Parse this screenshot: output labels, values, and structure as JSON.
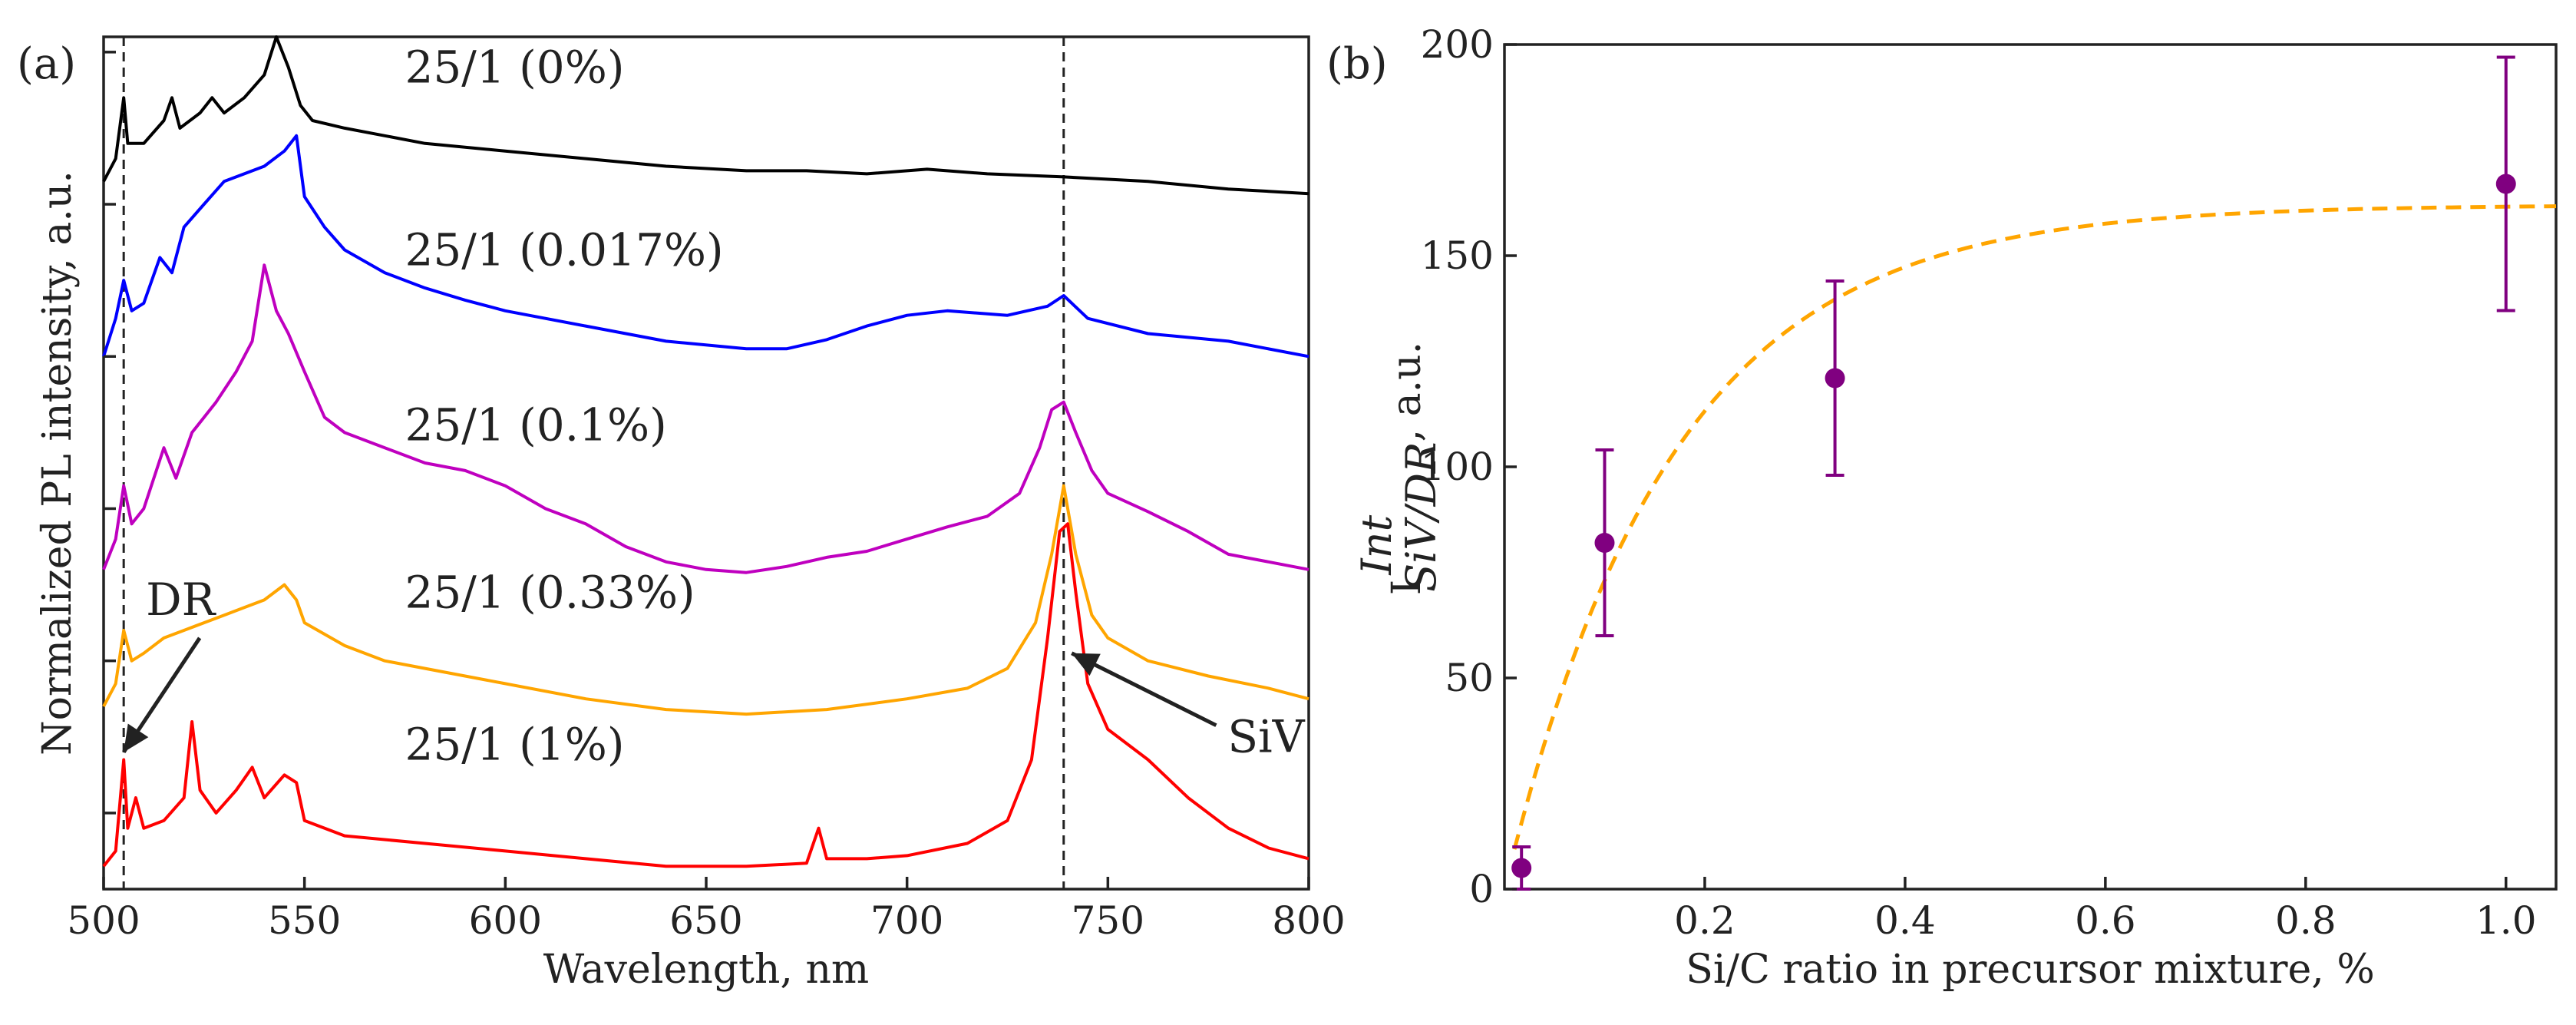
{
  "chart_data": [
    {
      "panel": "(a)",
      "type": "line",
      "xlabel": "Wavelength, nm",
      "ylabel": "Normalized PL intensity, a.u.",
      "xlim": [
        500,
        800
      ],
      "xticks": [
        500,
        550,
        600,
        650,
        700,
        750,
        800
      ],
      "ylim": [
        0,
        5.6
      ],
      "yticks": [
        0.5,
        1.5,
        2.5,
        3.5,
        4.5,
        5.5
      ],
      "dashed_lines_x": [
        505,
        739
      ],
      "series": [
        {
          "name": "25/1 (0%)",
          "color": "#000000",
          "offset": 4.6,
          "points": [
            [
              500,
              0.05
            ],
            [
              503,
              0.2
            ],
            [
              505,
              0.6
            ],
            [
              506,
              0.3
            ],
            [
              510,
              0.3
            ],
            [
              515,
              0.45
            ],
            [
              517,
              0.6
            ],
            [
              519,
              0.4
            ],
            [
              524,
              0.5
            ],
            [
              527,
              0.6
            ],
            [
              530,
              0.5
            ],
            [
              535,
              0.6
            ],
            [
              540,
              0.75
            ],
            [
              543,
              1.0
            ],
            [
              546,
              0.8
            ],
            [
              549,
              0.55
            ],
            [
              552,
              0.45
            ],
            [
              560,
              0.4
            ],
            [
              570,
              0.35
            ],
            [
              580,
              0.3
            ],
            [
              600,
              0.25
            ],
            [
              620,
              0.2
            ],
            [
              640,
              0.15
            ],
            [
              660,
              0.12
            ],
            [
              675,
              0.12
            ],
            [
              690,
              0.1
            ],
            [
              705,
              0.13
            ],
            [
              720,
              0.1
            ],
            [
              739,
              0.08
            ],
            [
              760,
              0.05
            ],
            [
              780,
              0.0
            ],
            [
              800,
              -0.03
            ]
          ]
        },
        {
          "name": "25/1 (0.017%)",
          "color": "#0000ff",
          "offset": 3.45,
          "points": [
            [
              500,
              0.05
            ],
            [
              503,
              0.3
            ],
            [
              505,
              0.55
            ],
            [
              507,
              0.35
            ],
            [
              510,
              0.4
            ],
            [
              514,
              0.7
            ],
            [
              517,
              0.6
            ],
            [
              520,
              0.9
            ],
            [
              525,
              1.05
            ],
            [
              530,
              1.2
            ],
            [
              535,
              1.25
            ],
            [
              540,
              1.3
            ],
            [
              545,
              1.4
            ],
            [
              548,
              1.5
            ],
            [
              550,
              1.1
            ],
            [
              555,
              0.9
            ],
            [
              560,
              0.75
            ],
            [
              570,
              0.6
            ],
            [
              580,
              0.5
            ],
            [
              590,
              0.42
            ],
            [
              600,
              0.35
            ],
            [
              620,
              0.25
            ],
            [
              640,
              0.15
            ],
            [
              660,
              0.1
            ],
            [
              670,
              0.1
            ],
            [
              680,
              0.16
            ],
            [
              690,
              0.25
            ],
            [
              700,
              0.32
            ],
            [
              710,
              0.35
            ],
            [
              725,
              0.32
            ],
            [
              735,
              0.38
            ],
            [
              739,
              0.45
            ],
            [
              745,
              0.3
            ],
            [
              760,
              0.2
            ],
            [
              780,
              0.15
            ],
            [
              800,
              0.05
            ]
          ]
        },
        {
          "name": "25/1 (0.1%)",
          "color": "#bf00bf",
          "offset": 2.1,
          "points": [
            [
              500,
              0.0
            ],
            [
              503,
              0.2
            ],
            [
              505,
              0.55
            ],
            [
              507,
              0.3
            ],
            [
              510,
              0.4
            ],
            [
              515,
              0.8
            ],
            [
              518,
              0.6
            ],
            [
              522,
              0.9
            ],
            [
              528,
              1.1
            ],
            [
              533,
              1.3
            ],
            [
              537,
              1.5
            ],
            [
              540,
              2.0
            ],
            [
              543,
              1.7
            ],
            [
              546,
              1.55
            ],
            [
              550,
              1.3
            ],
            [
              555,
              1.0
            ],
            [
              560,
              0.9
            ],
            [
              570,
              0.8
            ],
            [
              580,
              0.7
            ],
            [
              590,
              0.65
            ],
            [
              600,
              0.55
            ],
            [
              610,
              0.4
            ],
            [
              620,
              0.3
            ],
            [
              630,
              0.15
            ],
            [
              640,
              0.05
            ],
            [
              650,
              0.0
            ],
            [
              660,
              -0.02
            ],
            [
              670,
              0.02
            ],
            [
              680,
              0.08
            ],
            [
              690,
              0.12
            ],
            [
              700,
              0.2
            ],
            [
              710,
              0.28
            ],
            [
              720,
              0.35
            ],
            [
              728,
              0.5
            ],
            [
              733,
              0.8
            ],
            [
              736,
              1.05
            ],
            [
              739,
              1.1
            ],
            [
              742,
              0.9
            ],
            [
              746,
              0.65
            ],
            [
              750,
              0.5
            ],
            [
              760,
              0.38
            ],
            [
              770,
              0.25
            ],
            [
              780,
              0.1
            ],
            [
              790,
              0.05
            ],
            [
              800,
              0.0
            ]
          ]
        },
        {
          "name": "25/1 (0.33%)",
          "color": "#ffa500",
          "offset": 1.2,
          "points": [
            [
              500,
              0.0
            ],
            [
              503,
              0.15
            ],
            [
              505,
              0.5
            ],
            [
              507,
              0.3
            ],
            [
              510,
              0.35
            ],
            [
              515,
              0.45
            ],
            [
              520,
              0.5
            ],
            [
              525,
              0.55
            ],
            [
              530,
              0.6
            ],
            [
              535,
              0.65
            ],
            [
              540,
              0.7
            ],
            [
              545,
              0.8
            ],
            [
              548,
              0.7
            ],
            [
              550,
              0.55
            ],
            [
              560,
              0.4
            ],
            [
              570,
              0.3
            ],
            [
              580,
              0.25
            ],
            [
              600,
              0.15
            ],
            [
              620,
              0.05
            ],
            [
              640,
              -0.02
            ],
            [
              660,
              -0.05
            ],
            [
              680,
              -0.02
            ],
            [
              700,
              0.05
            ],
            [
              715,
              0.12
            ],
            [
              725,
              0.25
            ],
            [
              732,
              0.55
            ],
            [
              736,
              1.0
            ],
            [
              739,
              1.45
            ],
            [
              742,
              1.0
            ],
            [
              746,
              0.6
            ],
            [
              750,
              0.45
            ],
            [
              760,
              0.3
            ],
            [
              775,
              0.2
            ],
            [
              790,
              0.12
            ],
            [
              800,
              0.05
            ]
          ]
        },
        {
          "name": "25/1 (1%)",
          "color": "#ff0000",
          "offset": 0.15,
          "points": [
            [
              500,
              0.0
            ],
            [
              503,
              0.1
            ],
            [
              505,
              0.7
            ],
            [
              506,
              0.25
            ],
            [
              508,
              0.45
            ],
            [
              510,
              0.25
            ],
            [
              515,
              0.3
            ],
            [
              520,
              0.45
            ],
            [
              522,
              0.95
            ],
            [
              524,
              0.5
            ],
            [
              528,
              0.35
            ],
            [
              533,
              0.5
            ],
            [
              537,
              0.65
            ],
            [
              540,
              0.45
            ],
            [
              545,
              0.6
            ],
            [
              548,
              0.55
            ],
            [
              550,
              0.3
            ],
            [
              560,
              0.2
            ],
            [
              580,
              0.15
            ],
            [
              600,
              0.1
            ],
            [
              620,
              0.05
            ],
            [
              640,
              0.0
            ],
            [
              660,
              0.0
            ],
            [
              675,
              0.02
            ],
            [
              678,
              0.25
            ],
            [
              680,
              0.05
            ],
            [
              690,
              0.05
            ],
            [
              700,
              0.07
            ],
            [
              715,
              0.15
            ],
            [
              725,
              0.3
            ],
            [
              731,
              0.7
            ],
            [
              735,
              1.5
            ],
            [
              738,
              2.2
            ],
            [
              740,
              2.25
            ],
            [
              742,
              1.8
            ],
            [
              745,
              1.2
            ],
            [
              750,
              0.9
            ],
            [
              760,
              0.7
            ],
            [
              770,
              0.45
            ],
            [
              780,
              0.25
            ],
            [
              790,
              0.12
            ],
            [
              800,
              0.05
            ]
          ]
        }
      ],
      "annotations": [
        {
          "text": "DR",
          "xy": [
            505,
            0.9
          ],
          "xytext": [
            522,
            1.65
          ]
        },
        {
          "text": "SiV",
          "xy": [
            741,
            1.55
          ],
          "xytext": [
            776,
            0.95
          ]
        }
      ]
    },
    {
      "panel": "(b)",
      "type": "scatter",
      "xlabel": "Si/C ratio in precursor mixture, %",
      "ylabel_main": "I",
      "ylabel_sup": "Int",
      "ylabel_sub": "SiV/DR",
      "ylabel_suffix": ", a.u.",
      "xlim": [
        0,
        1.05
      ],
      "xticks": [
        0.2,
        0.4,
        0.6,
        0.8,
        1.0
      ],
      "ylim": [
        0,
        200
      ],
      "yticks": [
        0,
        50,
        100,
        150,
        200
      ],
      "points": {
        "x": [
          0.017,
          0.1,
          0.33,
          1.0
        ],
        "y": [
          5,
          82,
          121,
          167
        ],
        "err": [
          5,
          22,
          23,
          30
        ],
        "color": "#800080"
      },
      "fit": {
        "style": "dashed",
        "color": "#ffa500",
        "A": 162,
        "k": 6.0,
        "x0": 0.0
      }
    }
  ]
}
